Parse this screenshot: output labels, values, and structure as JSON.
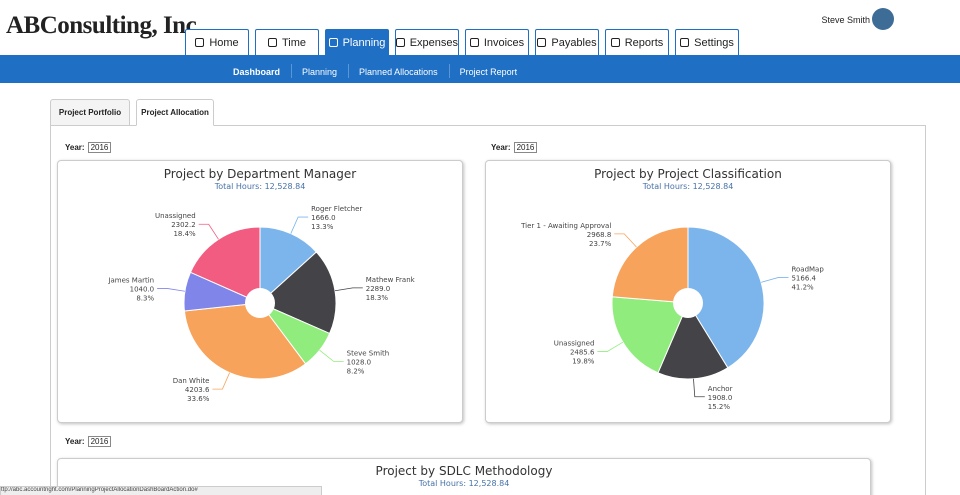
{
  "header": {
    "logo": "ABConsulting, Inc.",
    "user": "Steve Smith",
    "tabs": [
      {
        "label": "Home",
        "active": false
      },
      {
        "label": "Time",
        "active": false
      },
      {
        "label": "Planning",
        "active": true
      },
      {
        "label": "Expenses",
        "active": false
      },
      {
        "label": "Invoices",
        "active": false
      },
      {
        "label": "Payables",
        "active": false
      },
      {
        "label": "Reports",
        "active": false
      },
      {
        "label": "Settings",
        "active": false
      }
    ]
  },
  "subnav": [
    {
      "label": "Dashboard",
      "active": true
    },
    {
      "label": "Planning",
      "active": false
    },
    {
      "label": "Planned Allocations",
      "active": false
    },
    {
      "label": "Project Report",
      "active": false
    }
  ],
  "page_tabs": [
    {
      "label": "Project Portfolio",
      "active": false
    },
    {
      "label": "Project Allocation",
      "active": true
    }
  ],
  "year_selectors": [
    {
      "label": "Year:",
      "value": "2016"
    },
    {
      "label": "Year:",
      "value": "2016"
    },
    {
      "label": "Year:",
      "value": "2016"
    }
  ],
  "chart_data": [
    {
      "type": "pie",
      "title": "Project by Department Manager",
      "subtitle": "Total Hours: 12,528.84",
      "categories": [
        "Roger Fletcher",
        "Mathew Frank",
        "Steve Smith",
        "Dan White",
        "James Martin",
        "Unassigned"
      ],
      "values": [
        1666.0,
        2289.0,
        1028.0,
        4203.6,
        1040.0,
        2302.2
      ],
      "value_labels": [
        "1666.0",
        "2289.0",
        "1028.0",
        "4203.6",
        "1040.0",
        "2302.2"
      ],
      "percentage_labels": [
        "13.3%",
        "18.3%",
        "8.2%",
        "33.6%",
        "8.3%",
        "18.4%"
      ],
      "colors": [
        "#7cb5ec",
        "#434348",
        "#90ed7d",
        "#f7a35c",
        "#8085e9",
        "#f15c80"
      ]
    },
    {
      "type": "pie",
      "title": "Project by Project Classification",
      "subtitle": "Total Hours: 12,528.84",
      "categories": [
        "RoadMap",
        "Anchor",
        "Unassigned",
        "Tier 1 - Awaiting Approval"
      ],
      "values": [
        5166.4,
        1908.0,
        2485.6,
        2968.8
      ],
      "value_labels": [
        "5166.4",
        "1908.0",
        "2485.6",
        "2968.8"
      ],
      "percentage_labels": [
        "41.2%",
        "15.2%",
        "19.8%",
        "23.7%"
      ],
      "colors": [
        "#7cb5ec",
        "#434348",
        "#90ed7d",
        "#f7a35c"
      ]
    },
    {
      "type": "pie",
      "title": "Project by SDLC Methodology",
      "subtitle": "Total Hours: 12,528.84"
    }
  ],
  "status_bar": "ttp://abc.accountright.com/PlanningProjectAllocationDashBoardAction.do#"
}
